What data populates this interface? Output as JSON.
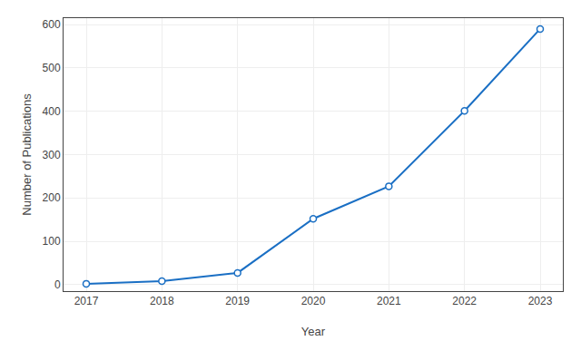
{
  "chart_data": {
    "type": "line",
    "x": [
      2017,
      2018,
      2019,
      2020,
      2021,
      2022,
      2023
    ],
    "values": [
      2,
      8,
      27,
      152,
      227,
      401,
      590
    ],
    "color": "#1a6fc4",
    "marker": "circle",
    "xlabel": "Year",
    "ylabel": "Number of Publications",
    "xlim": [
      2016.7,
      2023.3
    ],
    "ylim": [
      -15,
      615
    ],
    "xticks": [
      2017,
      2018,
      2019,
      2020,
      2021,
      2022,
      2023
    ],
    "yticks": [
      0,
      100,
      200,
      300,
      400,
      500,
      600
    ],
    "grid": true
  }
}
